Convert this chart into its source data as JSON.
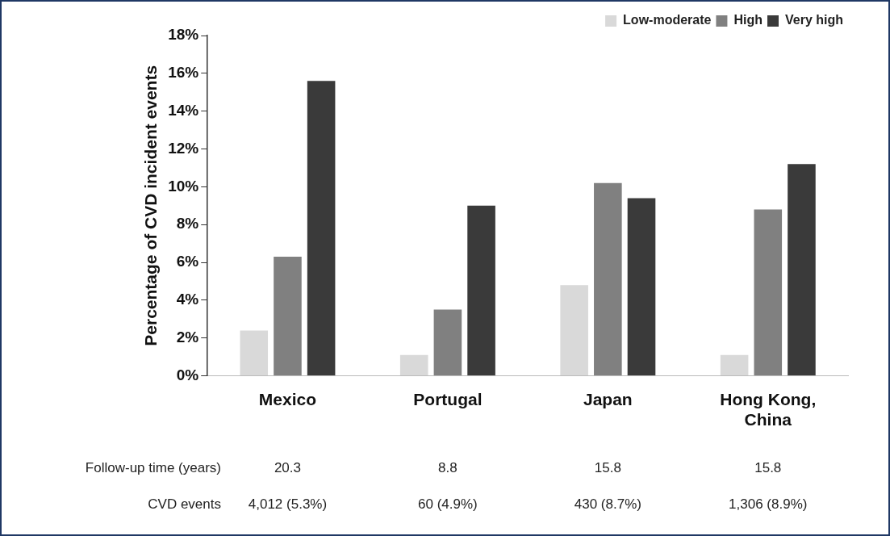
{
  "chart_data": {
    "type": "bar",
    "ylabel": "Percentage of CVD incident events",
    "categories": [
      "Mexico",
      "Portugal",
      "Japan",
      "Hong Kong, China"
    ],
    "series": [
      {
        "name": "Low-moderate",
        "color": "#d9d9d9",
        "values": [
          2.4,
          1.1,
          4.8,
          1.1
        ]
      },
      {
        "name": "High",
        "color": "#808080",
        "values": [
          6.3,
          3.5,
          10.2,
          8.8
        ]
      },
      {
        "name": "Very high",
        "color": "#3a3a3a",
        "values": [
          15.6,
          9.0,
          9.4,
          11.2
        ]
      }
    ],
    "ylim": [
      0,
      18
    ],
    "yticks": [
      {
        "value": 0,
        "label": "0%"
      },
      {
        "value": 2,
        "label": "2%"
      },
      {
        "value": 4,
        "label": "4%"
      },
      {
        "value": 6,
        "label": "6%"
      },
      {
        "value": 8,
        "label": "8%"
      },
      {
        "value": 10,
        "label": "10%"
      },
      {
        "value": 12,
        "label": "12%"
      },
      {
        "value": 14,
        "label": "14%"
      },
      {
        "value": 16,
        "label": "16%"
      },
      {
        "value": 18,
        "label": "18%"
      }
    ],
    "grid": false,
    "legend": "top right",
    "annotations": [
      "Follow-up time (years)",
      "20.3",
      "8.8",
      "15.8",
      "15.8",
      "CVD events",
      "4,012 (5.3%)",
      "60 (4.9%)",
      "430 (8.7%)",
      "1,306 (8.9%)"
    ]
  }
}
